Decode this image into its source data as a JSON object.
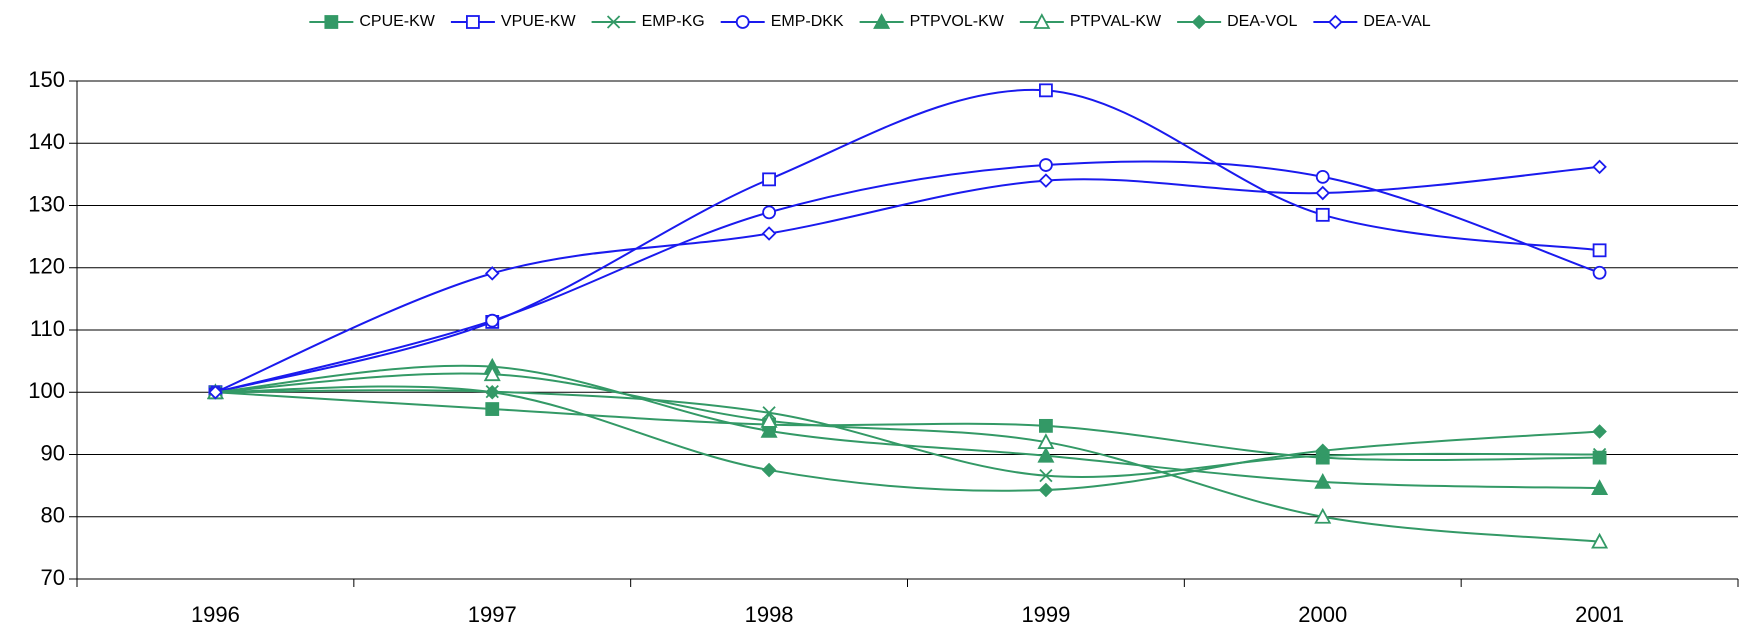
{
  "chart_data": {
    "type": "line",
    "smooth": true,
    "grid": true,
    "legend": "top",
    "categories": [
      "1996",
      "1997",
      "1998",
      "1999",
      "2000",
      "2001"
    ],
    "ylim": [
      70,
      150
    ],
    "yticks": [
      70,
      80,
      90,
      100,
      110,
      120,
      130,
      140,
      150
    ],
    "series": [
      {
        "name": "CPUE-KW",
        "color": "#339966",
        "marker": "square",
        "filled": true,
        "values": [
          100,
          97.3,
          94.8,
          94.6,
          89.5,
          89.5
        ]
      },
      {
        "name": "VPUE-KW",
        "color": "#1a1aee",
        "marker": "square",
        "filled": false,
        "values": [
          100,
          111.3,
          134.2,
          148.5,
          128.5,
          122.8
        ]
      },
      {
        "name": "EMP-KG",
        "color": "#339966",
        "marker": "x",
        "filled": false,
        "values": [
          100,
          100.1,
          96.7,
          86.6,
          89.8,
          90
        ]
      },
      {
        "name": "EMP-DKK",
        "color": "#1a1aee",
        "marker": "circle",
        "filled": false,
        "values": [
          100,
          111.5,
          128.9,
          136.5,
          134.6,
          119.2
        ]
      },
      {
        "name": "PTPVOL-KW",
        "color": "#339966",
        "marker": "triangle",
        "filled": true,
        "values": [
          100,
          104.1,
          93.8,
          89.8,
          85.6,
          84.6
        ]
      },
      {
        "name": "PTPVAL-KW",
        "color": "#339966",
        "marker": "triangle",
        "filled": false,
        "values": [
          100,
          102.9,
          95.4,
          92,
          80,
          76
        ]
      },
      {
        "name": "DEA-VOL",
        "color": "#339966",
        "marker": "diamond",
        "filled": true,
        "values": [
          100,
          100,
          87.5,
          84.3,
          90.6,
          93.7
        ]
      },
      {
        "name": "DEA-VAL",
        "color": "#1a1aee",
        "marker": "diamond",
        "filled": false,
        "values": [
          100,
          119.1,
          125.5,
          134,
          132,
          136.2
        ]
      }
    ]
  }
}
